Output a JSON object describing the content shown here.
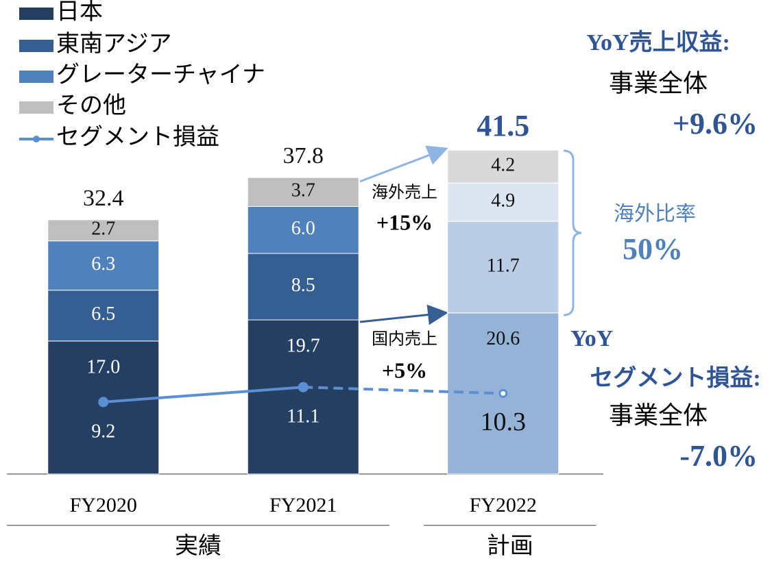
{
  "chart_data": {
    "type": "stacked_bar_line",
    "categories": [
      "FY2020",
      "FY2021",
      "FY2022"
    ],
    "groups": [
      {
        "label": "実績",
        "span": [
          0,
          1
        ]
      },
      {
        "label": "計画",
        "span": [
          2,
          2
        ]
      }
    ],
    "series": [
      {
        "name": "日本",
        "colors": [
          "#253f63",
          "#253f63",
          "#95b3d7"
        ],
        "values": [
          17.0,
          19.7,
          20.6
        ],
        "value_labels": [
          "17.0",
          "19.7",
          "20.6"
        ]
      },
      {
        "name": "東南アジア",
        "colors": [
          "#355f93",
          "#355f93",
          "#b9cde5"
        ],
        "values": [
          6.5,
          8.5,
          11.7
        ],
        "value_labels": [
          "6.5",
          "8.5",
          "11.7"
        ]
      },
      {
        "name": "グレーターチャイナ",
        "colors": [
          "#4f81bd",
          "#4f81bd",
          "#dce6f2"
        ],
        "values": [
          6.3,
          6.0,
          4.9
        ],
        "value_labels": [
          "6.3",
          "6.0",
          "4.9"
        ]
      },
      {
        "name": "その他",
        "colors": [
          "#bfbfbf",
          "#bfbfbf",
          "#d9d9d9"
        ],
        "values": [
          2.7,
          3.7,
          4.2
        ],
        "value_labels": [
          "2.7",
          "3.7",
          "4.2"
        ]
      }
    ],
    "line": {
      "name": "セグメント損益",
      "color": "#5b8fd4",
      "values": [
        9.2,
        11.1,
        10.3
      ]
    },
    "totals": [
      32.4,
      37.8,
      41.5
    ],
    "ylim": [
      0,
      45
    ],
    "annotations": {
      "overseas_sales": "海外売上",
      "overseas_growth": "+15%",
      "domestic_sales": "国内売上",
      "domestic_growth": "+5%",
      "overseas_ratio": "海外比率",
      "overseas_ratio_value": "50%",
      "revenue_title": "YoY売上収益:",
      "revenue_scope": "事業全体",
      "revenue_growth": "+9.6%",
      "profit_title_1": "YoY",
      "profit_title_2": "セグメント損益:",
      "profit_scope": "事業全体",
      "profit_growth": "-7.0%"
    }
  }
}
